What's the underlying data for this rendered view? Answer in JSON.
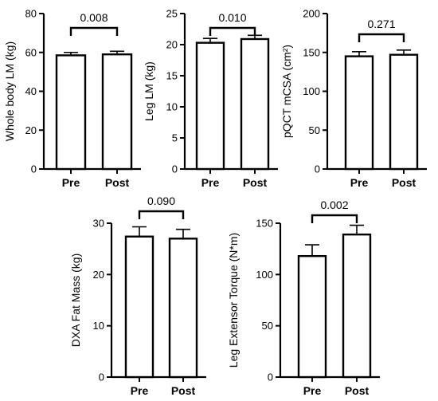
{
  "chart_data": [
    {
      "type": "bar",
      "categories": [
        "Pre",
        "Post"
      ],
      "values": [
        58.5,
        59.0
      ],
      "error": [
        1.5,
        1.6
      ],
      "ylabel": "Whole body LM (kg)",
      "ylim": [
        0,
        80
      ],
      "yticks": [
        0,
        20,
        40,
        60,
        80
      ],
      "annotation": "0.008",
      "grid": false
    },
    {
      "type": "bar",
      "categories": [
        "Pre",
        "Post"
      ],
      "values": [
        20.3,
        20.9
      ],
      "error": [
        0.7,
        0.6
      ],
      "ylabel": "Leg LM (kg)",
      "ylim": [
        0,
        25
      ],
      "yticks": [
        0,
        5,
        10,
        15,
        20,
        25
      ],
      "annotation": "0.010",
      "grid": false
    },
    {
      "type": "bar",
      "categories": [
        "Pre",
        "Post"
      ],
      "values": [
        145,
        147
      ],
      "error": [
        6,
        6
      ],
      "ylabel": "pQCT mCSA (cm²)",
      "ylim": [
        0,
        200
      ],
      "yticks": [
        0,
        50,
        100,
        150,
        200
      ],
      "annotation": "0.271",
      "grid": false
    },
    {
      "type": "bar",
      "categories": [
        "Pre",
        "Post"
      ],
      "values": [
        27.4,
        27.0
      ],
      "error": [
        1.9,
        1.8
      ],
      "ylabel": "DXA Fat Mass (kg)",
      "ylim": [
        0,
        30
      ],
      "yticks": [
        0,
        10,
        20,
        30
      ],
      "annotation": "0.090",
      "grid": false
    },
    {
      "type": "bar",
      "categories": [
        "Pre",
        "Post"
      ],
      "values": [
        118,
        139
      ],
      "error": [
        11,
        9
      ],
      "ylabel": "Leg Extensor Torque (N*m)",
      "ylim": [
        0,
        150
      ],
      "yticks": [
        0,
        50,
        100,
        150
      ],
      "annotation": "0.002",
      "grid": false
    }
  ]
}
